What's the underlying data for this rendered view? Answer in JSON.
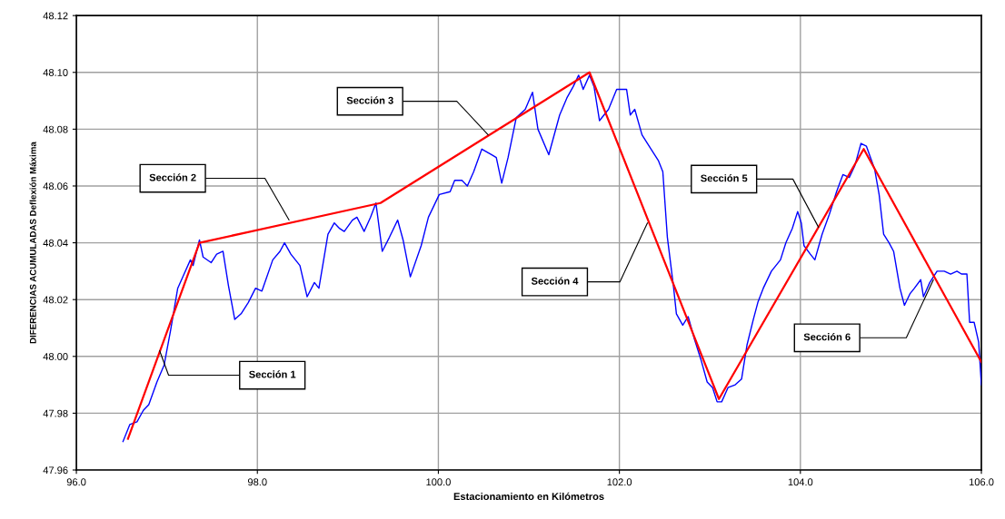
{
  "chart_data": {
    "type": "line",
    "xlabel": "Estacionamiento en Kilómetros",
    "ylabel": "DIFERENCIAS ACUMULADAS Deflexión Máxima",
    "xlim": [
      96,
      106
    ],
    "ylim": [
      47.96,
      48.12
    ],
    "xticks": [
      {
        "value": 96,
        "label": "96.0"
      },
      {
        "value": 98,
        "label": "98.0"
      },
      {
        "value": 100,
        "label": "100.0"
      },
      {
        "value": 102,
        "label": "102.0"
      },
      {
        "value": 104,
        "label": "104.0"
      },
      {
        "value": 106,
        "label": "106.0"
      }
    ],
    "yticks": [
      {
        "value": 47.96,
        "label": "47.96"
      },
      {
        "value": 47.98,
        "label": "47.98"
      },
      {
        "value": 48.0,
        "label": "48.00"
      },
      {
        "value": 48.02,
        "label": "48.02"
      },
      {
        "value": 48.04,
        "label": "48.04"
      },
      {
        "value": 48.06,
        "label": "48.06"
      },
      {
        "value": 48.08,
        "label": "48.08"
      },
      {
        "value": 48.1,
        "label": "48.10"
      },
      {
        "value": 48.12,
        "label": "48.12"
      }
    ],
    "grid": true,
    "legend": false,
    "marker": "none",
    "line_style": "solid",
    "series": [
      {
        "color": "#0000ff",
        "x": [
          96.515,
          96.59,
          96.67,
          96.74,
          96.8,
          96.89,
          96.97,
          97.04,
          97.12,
          97.19,
          97.26,
          97.29,
          97.36,
          97.4,
          97.49,
          97.55,
          97.62,
          97.68,
          97.75,
          97.82,
          97.9,
          97.98,
          98.05,
          98.17,
          98.25,
          98.3,
          98.37,
          98.47,
          98.55,
          98.63,
          98.68,
          98.78,
          98.85,
          98.91,
          98.96,
          99.05,
          99.1,
          99.18,
          99.25,
          99.31,
          99.38,
          99.46,
          99.55,
          99.61,
          99.69,
          99.81,
          99.89,
          100.01,
          100.13,
          100.18,
          100.26,
          100.32,
          100.39,
          100.48,
          100.59,
          100.64,
          100.7,
          100.77,
          100.86,
          100.96,
          101.04,
          101.1,
          101.22,
          101.34,
          101.42,
          101.49,
          101.55,
          101.6,
          101.67,
          101.72,
          101.78,
          101.88,
          101.97,
          102.08,
          102.12,
          102.17,
          102.25,
          102.35,
          102.43,
          102.48,
          102.53,
          102.6,
          102.63,
          102.7,
          102.76,
          102.83,
          102.9,
          102.97,
          103.03,
          103.08,
          103.13,
          103.2,
          103.28,
          103.35,
          103.41,
          103.48,
          103.53,
          103.59,
          103.68,
          103.78,
          103.84,
          103.91,
          103.97,
          104.01,
          104.04,
          104.11,
          104.16,
          104.24,
          104.32,
          104.4,
          104.47,
          104.54,
          104.6,
          104.67,
          104.73,
          104.82,
          104.87,
          104.92,
          104.98,
          105.03,
          105.1,
          105.15,
          105.21,
          105.26,
          105.33,
          105.36,
          105.43,
          105.51,
          105.59,
          105.66,
          105.73,
          105.78,
          105.84,
          105.87,
          105.92,
          105.97,
          106.0
        ],
        "values": [
          47.97,
          47.976,
          47.977,
          47.981,
          47.983,
          47.991,
          47.997,
          48.009,
          48.024,
          48.029,
          48.034,
          48.032,
          48.041,
          48.035,
          48.033,
          48.036,
          48.037,
          48.025,
          48.013,
          48.015,
          48.019,
          48.024,
          48.023,
          48.034,
          48.037,
          48.04,
          48.036,
          48.032,
          48.021,
          48.026,
          48.024,
          48.043,
          48.047,
          48.045,
          48.044,
          48.048,
          48.049,
          48.044,
          48.049,
          48.054,
          48.037,
          48.042,
          48.048,
          48.041,
          48.028,
          48.039,
          48.049,
          48.057,
          48.058,
          48.062,
          48.062,
          48.06,
          48.065,
          48.073,
          48.071,
          48.07,
          48.061,
          48.07,
          48.084,
          48.087,
          48.093,
          48.08,
          48.071,
          48.085,
          48.091,
          48.095,
          48.099,
          48.094,
          48.099,
          48.095,
          48.083,
          48.087,
          48.094,
          48.094,
          48.085,
          48.087,
          48.078,
          48.073,
          48.069,
          48.065,
          48.042,
          48.024,
          48.015,
          48.011,
          48.014,
          48.006,
          47.999,
          47.991,
          47.989,
          47.984,
          47.984,
          47.989,
          47.99,
          47.992,
          48.004,
          48.013,
          48.019,
          48.024,
          48.03,
          48.034,
          48.04,
          48.045,
          48.051,
          48.047,
          48.039,
          48.036,
          48.034,
          48.043,
          48.05,
          48.058,
          48.064,
          48.063,
          48.067,
          48.075,
          48.074,
          48.066,
          48.057,
          48.043,
          48.04,
          48.037,
          48.024,
          48.018,
          48.022,
          48.024,
          48.027,
          48.021,
          48.026,
          48.03,
          48.03,
          48.029,
          48.03,
          48.029,
          48.029,
          48.012,
          48.012,
          48.005,
          47.99
        ]
      },
      {
        "color": "#ff0000",
        "x": [
          96.57,
          97.36,
          99.36,
          101.67,
          103.1,
          104.7,
          106.0
        ],
        "values": [
          47.971,
          48.04,
          48.054,
          48.1,
          47.985,
          48.073,
          47.998
        ]
      }
    ],
    "annotations": [
      {
        "text": "Sección 1",
        "x": 96.92,
        "y": 48.002
      },
      {
        "text": "Sección 2",
        "x": 98.35,
        "y": 48.048
      },
      {
        "text": "Sección 3",
        "x": 100.55,
        "y": 48.078
      },
      {
        "text": "Sección 4",
        "x": 102.31,
        "y": 48.047
      },
      {
        "text": "Sección 5",
        "x": 104.2,
        "y": 48.0455
      },
      {
        "text": "Sección 6",
        "x": 105.47,
        "y": 48.027
      }
    ]
  }
}
